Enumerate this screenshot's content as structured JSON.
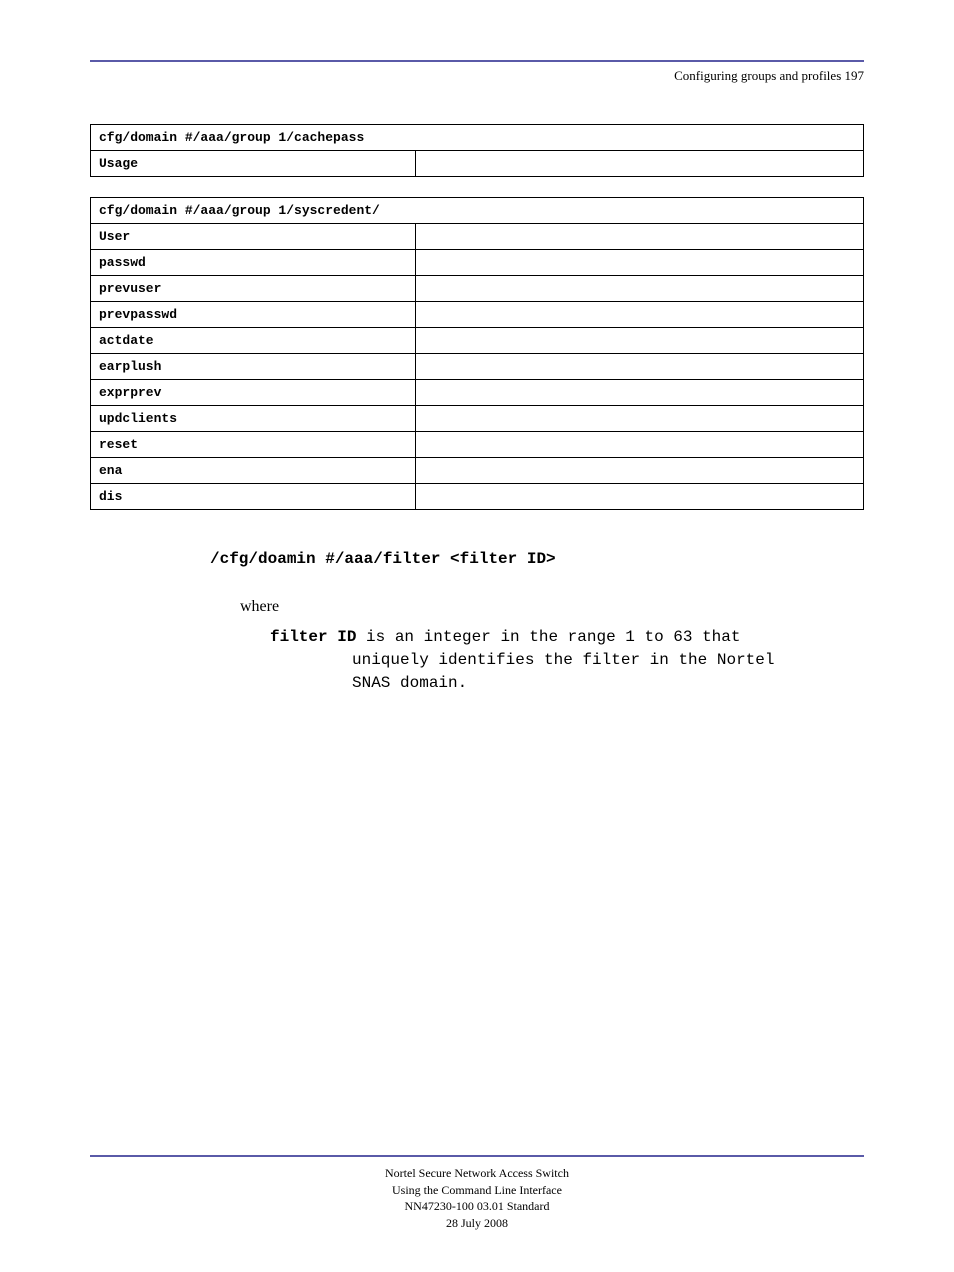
{
  "header": {
    "subtitle": "Configuring groups and profiles 197"
  },
  "table1": {
    "title": "cfg/domain #/aaa/group 1/cachepass",
    "rows": [
      {
        "label": "Usage",
        "value": ""
      }
    ]
  },
  "table2": {
    "title": "cfg/domain #/aaa/group 1/syscredent/",
    "rows": [
      {
        "label": "User",
        "value": ""
      },
      {
        "label": "passwd",
        "value": ""
      },
      {
        "label": "prevuser",
        "value": ""
      },
      {
        "label": "prevpasswd",
        "value": ""
      },
      {
        "label": "actdate",
        "value": ""
      },
      {
        "label": "earplush",
        "value": ""
      },
      {
        "label": "exprprev",
        "value": ""
      },
      {
        "label": "updclients",
        "value": ""
      },
      {
        "label": "reset",
        "value": ""
      },
      {
        "label": "ena",
        "value": ""
      },
      {
        "label": "dis",
        "value": ""
      }
    ]
  },
  "filter": {
    "title": "/cfg/doamin #/aaa/filter <filter ID>",
    "where": "where",
    "desc_bold": "filter ID",
    "desc_line1": " is an integer in the range 1 to 63 that",
    "desc_line2": "uniquely identifies the filter in the Nortel",
    "desc_line3": "SNAS domain."
  },
  "footer": {
    "line1": "Nortel Secure Network Access Switch",
    "line2": "Using the Command Line Interface",
    "line3": "NN47230-100 03.01 Standard",
    "line4": "28 July 2008"
  },
  "colors": {
    "rule": "#5a5aa8",
    "text": "#000000",
    "background": "#ffffff"
  }
}
